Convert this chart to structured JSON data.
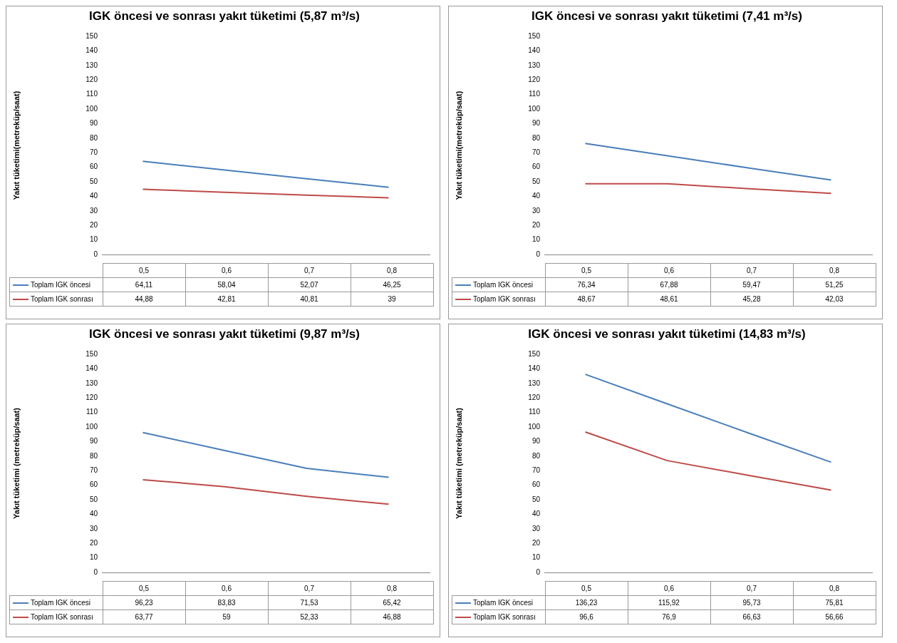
{
  "chart_data": [
    {
      "type": "line",
      "title": "IGK öncesi ve sonrası yakıt tüketimi  (5,87 m³/s)",
      "ylabel": "Yakıt tüketimi(metreküp/saat)",
      "categories": [
        "0,5",
        "0,6",
        "0,7",
        "0,8"
      ],
      "ylim": [
        0,
        150
      ],
      "yticks": [
        0,
        10,
        20,
        30,
        40,
        50,
        60,
        70,
        80,
        90,
        100,
        110,
        120,
        130,
        140,
        150
      ],
      "legend": "bottom",
      "marker": "none",
      "series": [
        {
          "name": "Toplam IGK öncesi",
          "color": "#4a7ebb",
          "values": [
            64.11,
            58.04,
            52.07,
            46.25
          ],
          "value_labels": [
            "64,11",
            "58,04",
            "52,07",
            "46,25"
          ]
        },
        {
          "name": "Toplam IGK sonrası",
          "color": "#be4b48",
          "values": [
            44.88,
            42.81,
            40.81,
            39
          ],
          "value_labels": [
            "44,88",
            "42,81",
            "40,81",
            "39"
          ]
        }
      ]
    },
    {
      "type": "line",
      "title": "IGK öncesi ve sonrası yakıt tüketimi  (7,41 m³/s)",
      "ylabel": "Yakıt tüketimi(metreküp/saat)",
      "categories": [
        "0,5",
        "0,6",
        "0,7",
        "0,8"
      ],
      "ylim": [
        0,
        150
      ],
      "yticks": [
        0,
        10,
        20,
        30,
        40,
        50,
        60,
        70,
        80,
        90,
        100,
        110,
        120,
        130,
        140,
        150
      ],
      "legend": "bottom",
      "marker": "none",
      "series": [
        {
          "name": "Toplam IGK öncesi",
          "color": "#4a7ebb",
          "values": [
            76.34,
            67.88,
            59.47,
            51.25
          ],
          "value_labels": [
            "76,34",
            "67,88",
            "59,47",
            "51,25"
          ]
        },
        {
          "name": "Toplam IGK sonrası",
          "color": "#be4b48",
          "values": [
            48.67,
            48.61,
            45.28,
            42.03
          ],
          "value_labels": [
            "48,67",
            "48,61",
            "45,28",
            "42,03"
          ]
        }
      ]
    },
    {
      "type": "line",
      "title": "IGK öncesi ve sonrası yakıt tüketimi  (9,87 m³/s)",
      "ylabel": "Yakıt tüketimi (metreküp/saat)",
      "categories": [
        "0,5",
        "0,6",
        "0,7",
        "0,8"
      ],
      "ylim": [
        0,
        150
      ],
      "yticks": [
        0,
        10,
        20,
        30,
        40,
        50,
        60,
        70,
        80,
        90,
        100,
        110,
        120,
        130,
        140,
        150
      ],
      "legend": "bottom",
      "marker": "none",
      "series": [
        {
          "name": "Toplam IGK öncesi",
          "color": "#4a7ebb",
          "values": [
            96.23,
            83.83,
            71.53,
            65.42
          ],
          "value_labels": [
            "96,23",
            "83,83",
            "71,53",
            "65,42"
          ]
        },
        {
          "name": "Toplam IGK sonrası",
          "color": "#be4b48",
          "values": [
            63.77,
            59,
            52.33,
            46.88
          ],
          "value_labels": [
            "63,77",
            "59",
            "52,33",
            "46,88"
          ]
        }
      ]
    },
    {
      "type": "line",
      "title": "IGK öncesi ve sonrası yakıt tüketimi  (14,83 m³/s)",
      "ylabel": "Yakıt tüketimi (metreküp/saat)",
      "categories": [
        "0,5",
        "0,6",
        "0,7",
        "0,8"
      ],
      "ylim": [
        0,
        150
      ],
      "yticks": [
        0,
        10,
        20,
        30,
        40,
        50,
        60,
        70,
        80,
        90,
        100,
        110,
        120,
        130,
        140,
        150
      ],
      "legend": "bottom",
      "marker": "none",
      "series": [
        {
          "name": "Toplam IGK öncesi",
          "color": "#4a7ebb",
          "values": [
            136.23,
            115.92,
            95.73,
            75.81
          ],
          "value_labels": [
            "136,23",
            "115,92",
            "95,73",
            "75,81"
          ]
        },
        {
          "name": "Toplam IGK sonrası",
          "color": "#be4b48",
          "values": [
            96.6,
            76.9,
            66.63,
            56.66
          ],
          "value_labels": [
            "96,6",
            "76,9",
            "66,63",
            "56,66"
          ]
        }
      ]
    }
  ]
}
